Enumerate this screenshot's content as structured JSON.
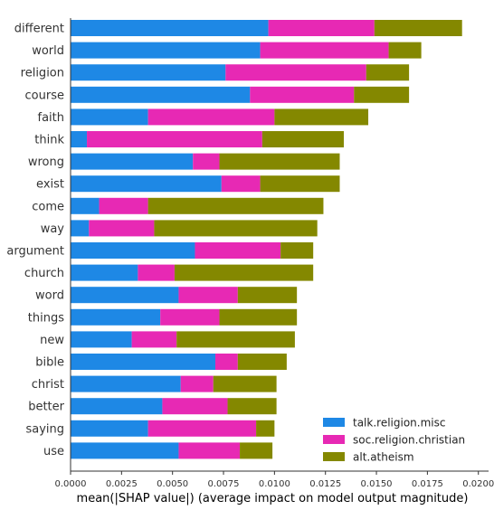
{
  "chart_data": {
    "type": "bar",
    "orientation": "horizontal",
    "stacked": true,
    "xlabel": "mean(|SHAP value|) (average impact on model output magnitude)",
    "xlim": [
      0.0,
      0.0205
    ],
    "xticks": [
      "0.0000",
      "0.0025",
      "0.0050",
      "0.0075",
      "0.0100",
      "0.0125",
      "0.0150",
      "0.0175",
      "0.0200"
    ],
    "legend_position": "lower-right",
    "categories": [
      "different",
      "world",
      "religion",
      "course",
      "faith",
      "think",
      "wrong",
      "exist",
      "come",
      "way",
      "argument",
      "church",
      "word",
      "things",
      "new",
      "bible",
      "christ",
      "better",
      "saying",
      "use"
    ],
    "series": [
      {
        "name": "talk.religion.misc",
        "color": "#1e88e5",
        "values": [
          0.0097,
          0.0093,
          0.0076,
          0.0088,
          0.0038,
          0.0008,
          0.006,
          0.0074,
          0.0014,
          0.0009,
          0.0061,
          0.0033,
          0.0053,
          0.0044,
          0.003,
          0.0071,
          0.0054,
          0.0045,
          0.0038,
          0.0053
        ]
      },
      {
        "name": "soc.religion.christian",
        "color": "#e729b4",
        "values": [
          0.0052,
          0.0063,
          0.0069,
          0.0051,
          0.0062,
          0.0086,
          0.0013,
          0.0019,
          0.0024,
          0.0032,
          0.0042,
          0.0018,
          0.0029,
          0.0029,
          0.0022,
          0.0011,
          0.0016,
          0.0032,
          0.0053,
          0.003
        ]
      },
      {
        "name": "alt.atheism",
        "color": "#848800",
        "values": [
          0.0043,
          0.0016,
          0.0021,
          0.0027,
          0.0046,
          0.004,
          0.0059,
          0.0039,
          0.0086,
          0.008,
          0.0016,
          0.0068,
          0.0029,
          0.0038,
          0.0058,
          0.0024,
          0.0031,
          0.0024,
          0.0009,
          0.0016
        ]
      }
    ]
  }
}
